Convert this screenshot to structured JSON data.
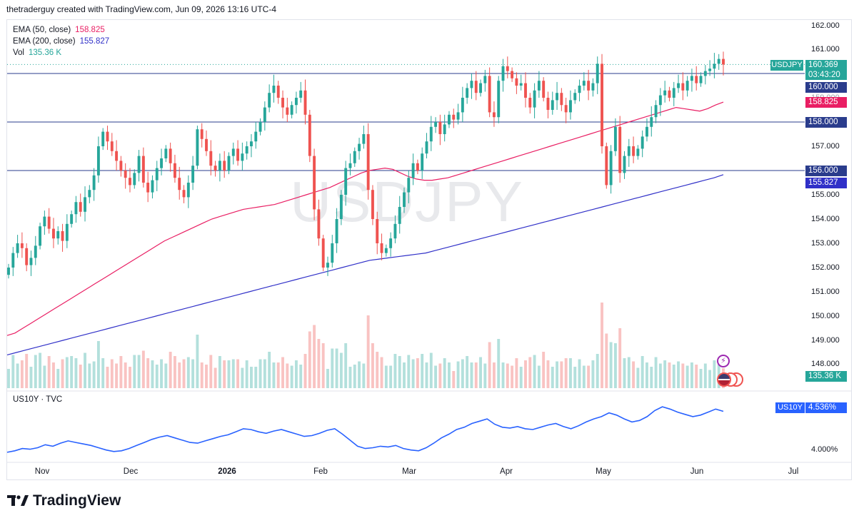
{
  "header": {
    "credit": "thetraderguy created with TradingView.com, Jun 09, 2026 13:16 UTC-4"
  },
  "watermark": "USDJPY",
  "legend": {
    "ema50": {
      "label": "EMA (50, close)",
      "value": "158.825",
      "color": "#e91e63"
    },
    "ema200": {
      "label": "EMA (200, close)",
      "value": "155.827",
      "color": "#3030c8"
    },
    "vol": {
      "label": "Vol",
      "value": "135.36 K",
      "color": "#26a69a"
    }
  },
  "lower_legend": {
    "label": "US10Y · TVC"
  },
  "price_axis": {
    "ticks": [
      "162.000",
      "161.000",
      "159.000",
      "157.000",
      "155.000",
      "154.000",
      "153.000",
      "152.000",
      "151.000",
      "150.000",
      "149.000",
      "148.000"
    ],
    "symbol_badge": "USDJPY",
    "last_price": "160.369",
    "countdown": "03:43:20",
    "level_160": "160.000",
    "ema50_label": "158.825",
    "level_158": "158.000",
    "level_156": "156.000",
    "ema200_label": "155.827",
    "volume_label": "135.36 K"
  },
  "lower_axis": {
    "badge": "US10Y",
    "value": "4.536%",
    "tick": "4.000%"
  },
  "time_axis": {
    "labels": [
      "Nov",
      "Dec",
      "2026",
      "Feb",
      "Mar",
      "Apr",
      "May",
      "Jun",
      "Jul"
    ]
  },
  "footer": {
    "brand": "TradingView"
  },
  "colors": {
    "up": "#26a69a",
    "down": "#ef5350",
    "level": "#2a3c8c",
    "us10y": "#2962ff"
  },
  "chart_data": [
    {
      "type": "candlestick",
      "title": "USDJPY",
      "ylim": [
        148,
        162
      ],
      "horizontal_levels": [
        160.0,
        158.0,
        156.0
      ],
      "closes": [
        152.0,
        152.6,
        153.0,
        152.8,
        152.1,
        152.4,
        152.9,
        153.7,
        154.1,
        153.6,
        153.2,
        153.5,
        153.1,
        153.8,
        154.2,
        154.7,
        154.3,
        154.9,
        155.2,
        155.8,
        157.0,
        157.6,
        157.2,
        156.8,
        156.4,
        156.0,
        155.7,
        155.4,
        155.9,
        156.6,
        155.5,
        155.1,
        155.6,
        156.1,
        156.5,
        156.9,
        156.3,
        155.7,
        155.2,
        154.9,
        155.5,
        156.2,
        157.7,
        157.3,
        156.8,
        156.2,
        156.0,
        156.4,
        156.0,
        156.6,
        156.9,
        156.4,
        156.7,
        157.0,
        157.2,
        157.6,
        158.0,
        158.6,
        159.2,
        159.5,
        159.0,
        158.6,
        158.3,
        158.7,
        159.0,
        159.3,
        158.3,
        156.6,
        154.4,
        153.2,
        152.0,
        152.2,
        153.0,
        154.0,
        155.0,
        156.1,
        156.3,
        156.8,
        157.1,
        157.5,
        155.2,
        154.0,
        153.0,
        152.6,
        152.8,
        153.2,
        153.8,
        154.5,
        155.1,
        155.7,
        156.3,
        156.0,
        156.7,
        157.2,
        157.8,
        158.0,
        157.5,
        157.9,
        158.3,
        158.1,
        158.4,
        159.0,
        159.4,
        159.7,
        159.2,
        159.6,
        159.9,
        158.4,
        158.2,
        159.7,
        160.3,
        160.1,
        159.8,
        159.5,
        159.6,
        159.0,
        158.6,
        159.3,
        159.7,
        159.0,
        158.5,
        158.9,
        159.2,
        158.7,
        158.4,
        158.9,
        159.2,
        159.5,
        159.7,
        159.3,
        159.6,
        160.4,
        157.0,
        155.4,
        156.8,
        157.8,
        155.9,
        156.6,
        157.0,
        156.6,
        156.9,
        157.4,
        157.8,
        158.2,
        158.7,
        159.1,
        159.3,
        159.0,
        159.4,
        159.6,
        159.3,
        159.7,
        159.9,
        159.6,
        159.9,
        160.1,
        160.2,
        160.4,
        160.6,
        160.37
      ],
      "ema50": [
        149.2,
        149.3,
        149.5,
        149.7,
        149.9,
        150.1,
        150.3,
        150.5,
        150.7,
        150.9,
        151.1,
        151.3,
        151.5,
        151.7,
        151.9,
        152.1,
        152.3,
        152.5,
        152.7,
        152.9,
        153.1,
        153.25,
        153.4,
        153.55,
        153.7,
        153.85,
        154.0,
        154.1,
        154.2,
        154.3,
        154.4,
        154.45,
        154.5,
        154.55,
        154.6,
        154.7,
        154.8,
        154.9,
        155.0,
        155.1,
        155.2,
        155.3,
        155.45,
        155.6,
        155.75,
        155.9,
        156.0,
        156.05,
        156.1,
        156.05,
        155.9,
        155.75,
        155.65,
        155.6,
        155.6,
        155.65,
        155.7,
        155.8,
        155.9,
        156.0,
        156.1,
        156.2,
        156.3,
        156.4,
        156.5,
        156.6,
        156.7,
        156.8,
        156.9,
        157.0,
        157.1,
        157.2,
        157.3,
        157.4,
        157.5,
        157.6,
        157.7,
        157.8,
        157.9,
        158.0,
        158.1,
        158.2,
        158.3,
        158.4,
        158.5,
        158.6,
        158.55,
        158.5,
        158.45,
        158.55,
        158.7,
        158.82
      ],
      "ema200": [
        148.4,
        148.5,
        148.6,
        148.7,
        148.8,
        148.9,
        149.0,
        149.1,
        149.2,
        149.3,
        149.4,
        149.5,
        149.6,
        149.7,
        149.8,
        149.9,
        150.0,
        150.1,
        150.2,
        150.3,
        150.4,
        150.5,
        150.6,
        150.7,
        150.8,
        150.9,
        151.0,
        151.1,
        151.2,
        151.3,
        151.4,
        151.5,
        151.6,
        151.7,
        151.8,
        151.9,
        152.0,
        152.1,
        152.2,
        152.3,
        152.35,
        152.4,
        152.45,
        152.5,
        152.55,
        152.6,
        152.7,
        152.8,
        152.9,
        153.0,
        153.1,
        153.2,
        153.3,
        153.4,
        153.5,
        153.6,
        153.7,
        153.8,
        153.9,
        154.0,
        154.1,
        154.2,
        154.3,
        154.4,
        154.5,
        154.6,
        154.7,
        154.8,
        154.9,
        155.0,
        155.1,
        155.2,
        155.3,
        155.4,
        155.5,
        155.6,
        155.7,
        155.83
      ]
    },
    {
      "type": "line",
      "title": "US10Y · TVC",
      "series": [
        {
          "name": "US10Y",
          "values": [
            4.0,
            4.02,
            4.05,
            4.04,
            4.06,
            4.1,
            4.08,
            4.12,
            4.15,
            4.13,
            4.11,
            4.09,
            4.06,
            4.03,
            4.01,
            4.02,
            4.05,
            4.09,
            4.13,
            4.17,
            4.2,
            4.22,
            4.19,
            4.16,
            4.13,
            4.12,
            4.15,
            4.18,
            4.21,
            4.23,
            4.27,
            4.31,
            4.3,
            4.27,
            4.25,
            4.28,
            4.3,
            4.27,
            4.24,
            4.21,
            4.22,
            4.25,
            4.29,
            4.31,
            4.24,
            4.16,
            4.08,
            4.05,
            4.06,
            4.08,
            4.07,
            4.09,
            4.05,
            4.03,
            4.02,
            4.06,
            4.12,
            4.19,
            4.24,
            4.3,
            4.33,
            4.38,
            4.41,
            4.44,
            4.37,
            4.33,
            4.32,
            4.34,
            4.31,
            4.3,
            4.33,
            4.36,
            4.38,
            4.34,
            4.31,
            4.35,
            4.4,
            4.44,
            4.47,
            4.52,
            4.49,
            4.44,
            4.4,
            4.42,
            4.47,
            4.55,
            4.6,
            4.57,
            4.53,
            4.5,
            4.47,
            4.49,
            4.53,
            4.57,
            4.54
          ]
        }
      ],
      "ylim": [
        3.98,
        4.62
      ]
    }
  ]
}
